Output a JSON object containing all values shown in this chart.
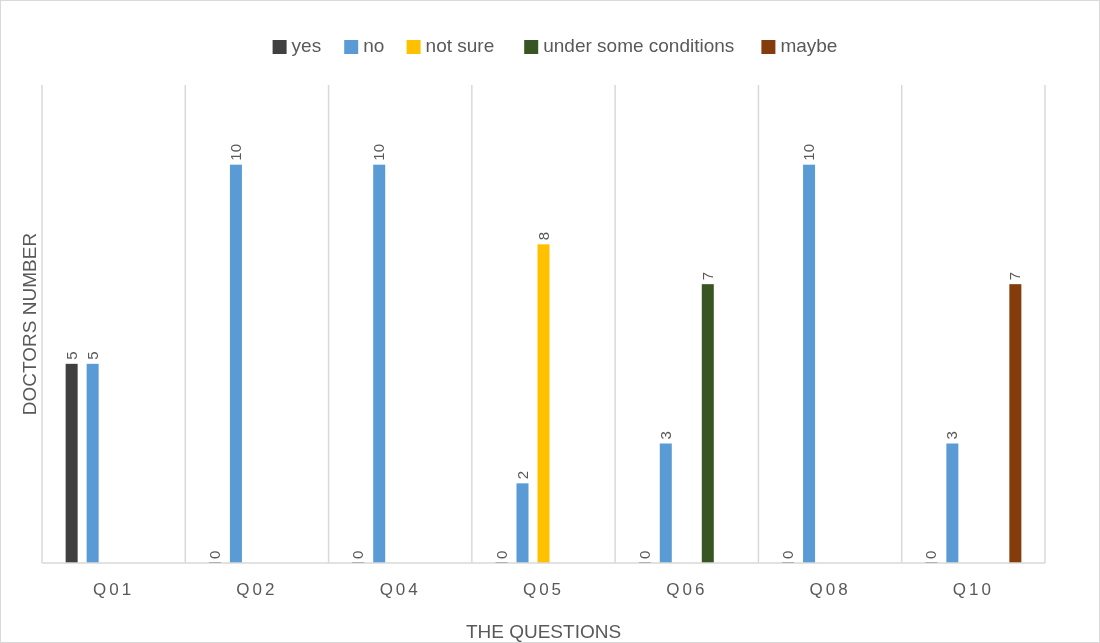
{
  "chart_data": {
    "type": "bar",
    "xlabel": "THE QUESTIONS",
    "ylabel": "DOCTORS NUMBER",
    "categories": [
      "Q01",
      "Q02",
      "Q04",
      "Q05",
      "Q06",
      "Q08",
      "Q10"
    ],
    "series": [
      {
        "name": "yes",
        "color": "#404040",
        "values": [
          5,
          0,
          0,
          0,
          0,
          0,
          0
        ]
      },
      {
        "name": "no",
        "color": "#5b9bd5",
        "values": [
          5,
          10,
          10,
          2,
          3,
          10,
          3
        ]
      },
      {
        "name": "not sure",
        "color": "#ffc000",
        "values": [
          null,
          null,
          null,
          8,
          null,
          null,
          null
        ]
      },
      {
        "name": "under some conditions",
        "color": "#375623",
        "values": [
          null,
          null,
          null,
          null,
          7,
          null,
          null
        ]
      },
      {
        "name": "maybe",
        "color": "#843c0c",
        "values": [
          null,
          null,
          null,
          null,
          null,
          null,
          7
        ]
      }
    ],
    "ylim": [
      0,
      12
    ],
    "tick_labels": "x",
    "grid": "x",
    "legend": "top",
    "data_labels": true
  }
}
